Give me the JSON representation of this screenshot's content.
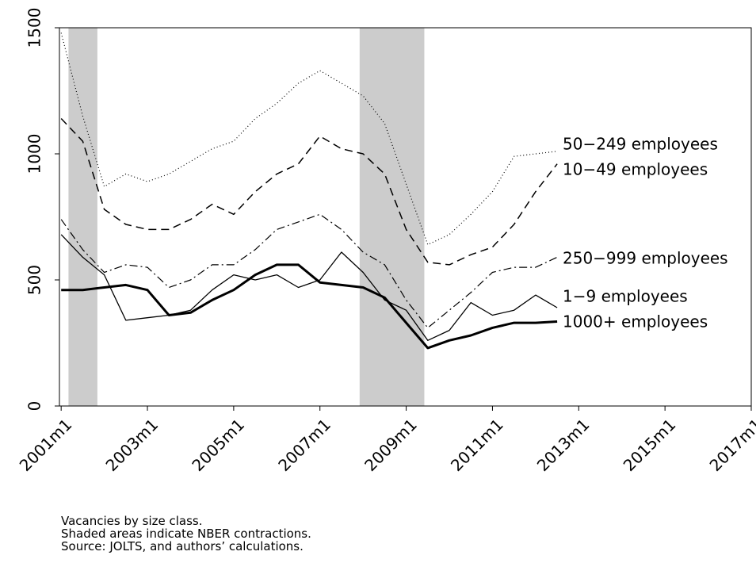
{
  "chart_data": {
    "type": "line",
    "x": [
      2001.0,
      2001.5,
      2002.0,
      2002.5,
      2003.0,
      2003.5,
      2004.0,
      2004.5,
      2005.0,
      2005.5,
      2006.0,
      2006.5,
      2007.0,
      2007.5,
      2008.0,
      2008.5,
      2009.0,
      2009.5,
      2010.0,
      2010.5,
      2011.0,
      2011.5,
      2012.0,
      2012.5
    ],
    "series": [
      {
        "name": "50−249 employees",
        "color": "#000000",
        "dash": "1,3",
        "width": 1.2,
        "values": [
          1480,
          1150,
          870,
          920,
          890,
          920,
          970,
          1020,
          1050,
          1140,
          1200,
          1280,
          1330,
          1280,
          1230,
          1120,
          880,
          640,
          680,
          760,
          850,
          990,
          1000,
          1010
        ]
      },
      {
        "name": "10−49 employees",
        "color": "#000000",
        "dash": "10,6",
        "width": 1.5,
        "values": [
          1140,
          1050,
          780,
          720,
          700,
          700,
          740,
          800,
          760,
          850,
          920,
          960,
          1070,
          1020,
          1000,
          920,
          700,
          570,
          560,
          600,
          630,
          720,
          850,
          960
        ]
      },
      {
        "name": "250−999 employees",
        "color": "#000000",
        "dash": "10,4,2,4",
        "width": 1.2,
        "values": [
          740,
          620,
          530,
          560,
          550,
          470,
          500,
          560,
          560,
          620,
          700,
          730,
          760,
          700,
          610,
          560,
          420,
          310,
          380,
          450,
          530,
          550,
          550,
          590
        ]
      },
      {
        "name": "1−9 employees",
        "color": "#000000",
        "dash": "",
        "width": 1.3,
        "values": [
          680,
          590,
          520,
          340,
          350,
          360,
          380,
          460,
          520,
          500,
          520,
          470,
          500,
          610,
          530,
          420,
          380,
          260,
          300,
          410,
          360,
          380,
          440,
          390
        ]
      },
      {
        "name": "1000+ employees",
        "color": "#000000",
        "dash": "",
        "width": 3,
        "values": [
          460,
          460,
          470,
          480,
          460,
          360,
          370,
          420,
          460,
          520,
          560,
          560,
          490,
          480,
          470,
          430,
          330,
          230,
          260,
          280,
          310,
          330,
          330,
          335
        ]
      }
    ],
    "shaded_regions": [
      [
        2001.17,
        2001.84
      ],
      [
        2007.92,
        2009.42
      ]
    ],
    "shade_color": "#cccccc",
    "xlim": [
      2000.96,
      2017.0
    ],
    "xticks": [
      {
        "value": 2001,
        "label": "2001m1"
      },
      {
        "value": 2003,
        "label": "2003m1"
      },
      {
        "value": 2005,
        "label": "2005m1"
      },
      {
        "value": 2007,
        "label": "2007m1"
      },
      {
        "value": 2009,
        "label": "2009m1"
      },
      {
        "value": 2011,
        "label": "2011m1"
      },
      {
        "value": 2013,
        "label": "2013m1"
      },
      {
        "value": 2015,
        "label": "2015m1"
      },
      {
        "value": 2017,
        "label": "2017m1"
      }
    ],
    "ylim": [
      0,
      1500
    ],
    "yticks": [
      0,
      500,
      1000,
      1500
    ],
    "notes": [
      "Vacancies by size class.",
      "Shaded areas indicate NBER contractions.",
      "Source: JOLTS, and authors’ calculations."
    ]
  }
}
